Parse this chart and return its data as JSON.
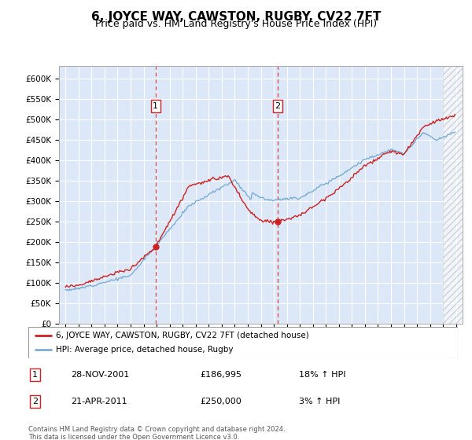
{
  "title": "6, JOYCE WAY, CAWSTON, RUGBY, CV22 7FT",
  "subtitle": "Price paid vs. HM Land Registry's House Price Index (HPI)",
  "title_fontsize": 11,
  "subtitle_fontsize": 9,
  "legend_line1": "6, JOYCE WAY, CAWSTON, RUGBY, CV22 7FT (detached house)",
  "legend_line2": "HPI: Average price, detached house, Rugby",
  "footer": "Contains HM Land Registry data © Crown copyright and database right 2024.\nThis data is licensed under the Open Government Licence v3.0.",
  "table": [
    {
      "num": "1",
      "date": "28-NOV-2001",
      "price": "£186,995",
      "hpi": "18% ↑ HPI"
    },
    {
      "num": "2",
      "date": "21-APR-2011",
      "price": "£250,000",
      "hpi": "3% ↑ HPI"
    }
  ],
  "sale1_year": 2001.92,
  "sale1_price": 186995,
  "sale2_year": 2011.3,
  "sale2_price": 250000,
  "hpi_color": "#7aadd4",
  "price_color": "#cc2222",
  "marker_color": "#cc2222",
  "vline_color": "#cc2222",
  "bg_color": "#dce8f8",
  "grid_color": "#ffffff",
  "ylim_min": 0,
  "ylim_max": 630000,
  "ytick_max": 600000,
  "ytick_step": 50000,
  "xlim_start": 1994.5,
  "xlim_end": 2025.5,
  "hatch_start": 2024.0
}
